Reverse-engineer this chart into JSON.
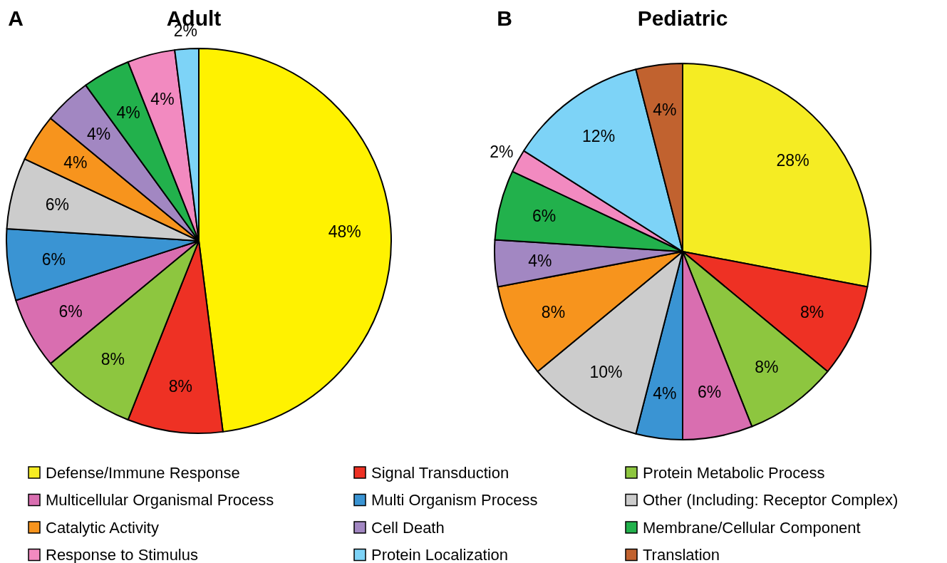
{
  "chart_data": [
    {
      "type": "pie",
      "title": "Adult",
      "annotations": [
        "A"
      ],
      "categories": [
        null,
        null,
        null,
        null,
        null,
        null,
        null,
        null,
        null,
        null,
        null
      ],
      "values": [
        48,
        8,
        8,
        6,
        6,
        6,
        4,
        4,
        4,
        4,
        2
      ],
      "value_labels": [
        "48%",
        "8%",
        "8%",
        "6%",
        "6%",
        "6%",
        "4%",
        "4%",
        "4%",
        "4%",
        "2%"
      ],
      "colors": [
        "#fff200",
        "#ee3124",
        "#8dc63f",
        "#d96eb0",
        "#3a94d3",
        "#cccccc",
        "#f7941d",
        "#a287c2",
        "#22b14c",
        "#f28ac0",
        "#7dd3f7"
      ]
    },
    {
      "type": "pie",
      "title": "Pediatric",
      "annotations": [
        "B"
      ],
      "categories": [
        "Defense/Immune Response",
        "Signal Transduction",
        "Protein Metabolic Process",
        "Multicellular Organismal Process",
        "Multi Organism Process",
        "Other (Including: Receptor Complex)",
        "Catalytic Activity",
        "Cell Death",
        "Membrane/Cellular Component",
        "Response to Stimulus",
        "Protein Localization",
        "Translation"
      ],
      "values": [
        28,
        8,
        8,
        6,
        4,
        10,
        8,
        4,
        6,
        2,
        12,
        4
      ],
      "value_labels": [
        "28%",
        "8%",
        "8%",
        "6%",
        "4%",
        "10%",
        "8%",
        "4%",
        "6%",
        "2%",
        "12%",
        "4%"
      ],
      "colors": [
        "#f5ec23",
        "#ee3124",
        "#8dc63f",
        "#d96eb0",
        "#3a94d3",
        "#cccccc",
        "#f7941d",
        "#a287c2",
        "#22b14c",
        "#f28ac0",
        "#7dd3f7",
        "#c1622f"
      ],
      "legend": "bottom"
    }
  ]
}
